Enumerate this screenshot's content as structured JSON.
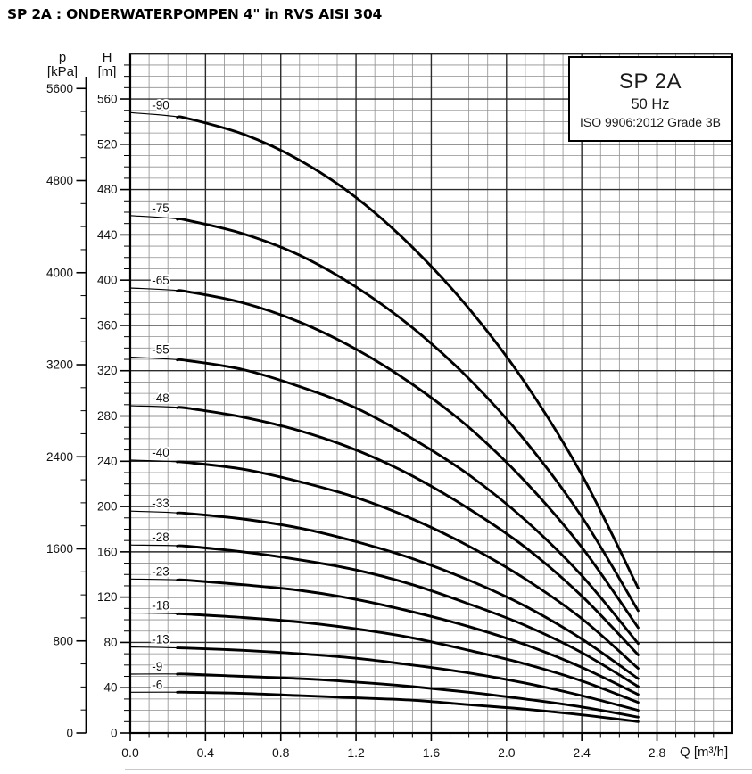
{
  "page_title": "SP 2A : ONDERWATERPOMPEN 4\" in RVS AISI 304",
  "legend_box": {
    "model": "SP 2A",
    "frequency": "50 Hz",
    "standard": "ISO 9906:2012 Grade 3B"
  },
  "axes_labels": {
    "pressure_symbol": "p",
    "pressure_unit": "[kPa]",
    "head_symbol": "H",
    "head_unit": "[m]",
    "flow_label": "Q [m³/h]"
  },
  "colors": {
    "background": "#ffffff",
    "curve": "#000000",
    "grid_minor": "#8f8f8f",
    "grid_major": "#2b2b2b",
    "frame": "#000000",
    "text": "#111111"
  },
  "chart_data": {
    "type": "line",
    "title": "SP 2A pump performance curves (head vs flow)",
    "xlabel": "Q [m³/h]",
    "ylabel_inner": "H [m]",
    "ylabel_outer": "p [kPa]",
    "xlim": [
      0,
      3.2
    ],
    "ylim_head_m": [
      0,
      600
    ],
    "plim_kpa": [
      0,
      5900
    ],
    "grid": true,
    "legend_position": "top-right",
    "legend_lines": [
      "SP 2A",
      "50 Hz",
      "ISO 9906:2012 Grade 3B"
    ],
    "x_tick_labels": [
      "0.0",
      "0.4",
      "0.8",
      "1.2",
      "1.6",
      "2.0",
      "2.4",
      "2.8"
    ],
    "x_minor_step": 0.1,
    "y_major_ticks_m": [
      0,
      40,
      80,
      120,
      160,
      200,
      240,
      280,
      320,
      360,
      400,
      440,
      480,
      520,
      560
    ],
    "y_minor_step_m": 10,
    "p_major_ticks_kpa": [
      0,
      800,
      1600,
      2400,
      3200,
      4000,
      4800,
      5600
    ],
    "p_minor_step_kpa": 200,
    "q_points": [
      0,
      0.3,
      0.6,
      0.9,
      1.2,
      1.5,
      1.8,
      2.1,
      2.4,
      2.7
    ],
    "thick_from_q": 0.25,
    "series": [
      {
        "label": "-90",
        "h_m": [
          548,
          543,
          529,
          506,
          473,
          429,
          375,
          309,
          228,
          128
        ]
      },
      {
        "label": "-75",
        "h_m": [
          457,
          453,
          441,
          422,
          394,
          358,
          313,
          258,
          191,
          108
        ]
      },
      {
        "label": "-65",
        "h_m": [
          393,
          390,
          380,
          363,
          339,
          308,
          270,
          222,
          164,
          93
        ]
      },
      {
        "label": "-55",
        "h_m": [
          332,
          329,
          321,
          306,
          287,
          260,
          228,
          188,
          139,
          79
        ]
      },
      {
        "label": "-48",
        "h_m": [
          289,
          287,
          279,
          267,
          250,
          227,
          198,
          164,
          121,
          69
        ]
      },
      {
        "label": "-40",
        "h_m": [
          241,
          239,
          233,
          222,
          208,
          189,
          165,
          136,
          101,
          57
        ]
      },
      {
        "label": "-33",
        "h_m": [
          196,
          194,
          189,
          181,
          169,
          154,
          135,
          112,
          83,
          48
        ]
      },
      {
        "label": "-28",
        "h_m": [
          166,
          165,
          160,
          153,
          144,
          131,
          114,
          95,
          71,
          41
        ]
      },
      {
        "label": "-23",
        "h_m": [
          136,
          135,
          131,
          126,
          118,
          107,
          94,
          78,
          58,
          34
        ]
      },
      {
        "label": "-18",
        "h_m": [
          106,
          105,
          102,
          98,
          92,
          84,
          73,
          61,
          46,
          27
        ]
      },
      {
        "label": "-13",
        "h_m": [
          76,
          75,
          73,
          70,
          66,
          60,
          53,
          44,
          33,
          20
        ]
      },
      {
        "label": "-9",
        "h_m": [
          52,
          52,
          50,
          48,
          45,
          41,
          36,
          30,
          23,
          14
        ]
      },
      {
        "label": "-6",
        "h_m": [
          36,
          36,
          35,
          33,
          31,
          29,
          25,
          21,
          16,
          10
        ]
      }
    ]
  }
}
